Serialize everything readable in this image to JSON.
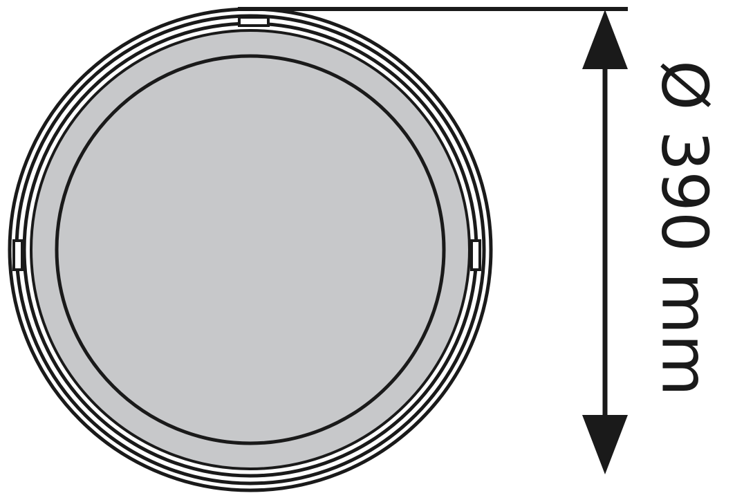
{
  "diagram": {
    "dimension_label": "Ø 390 mm",
    "colors": {
      "stroke": "#1a1a1a",
      "lens_fill": "#c7c8ca",
      "background": "#ffffff"
    }
  }
}
